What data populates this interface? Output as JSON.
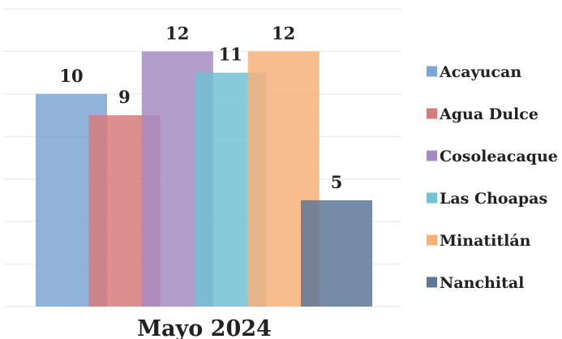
{
  "chart_data": {
    "type": "bar",
    "categories": [
      "Mayo 2024"
    ],
    "series": [
      {
        "name": "Acayucan",
        "values": [
          10
        ],
        "color": "#7ea6d3"
      },
      {
        "name": "Agua Dulce",
        "values": [
          9
        ],
        "color": "#d57b7b"
      },
      {
        "name": "Cosoleacaque",
        "values": [
          12
        ],
        "color": "#a48cc2"
      },
      {
        "name": "Las Choapas",
        "values": [
          11
        ],
        "color": "#72c1d4"
      },
      {
        "name": "Minatitlán",
        "values": [
          12
        ],
        "color": "#f7b27a"
      },
      {
        "name": "Nanchital",
        "values": [
          5
        ],
        "color": "#5e7896"
      }
    ],
    "ylim": [
      0,
      14
    ],
    "grid": true,
    "legend": "right",
    "data_labels": true,
    "overlap": true
  }
}
